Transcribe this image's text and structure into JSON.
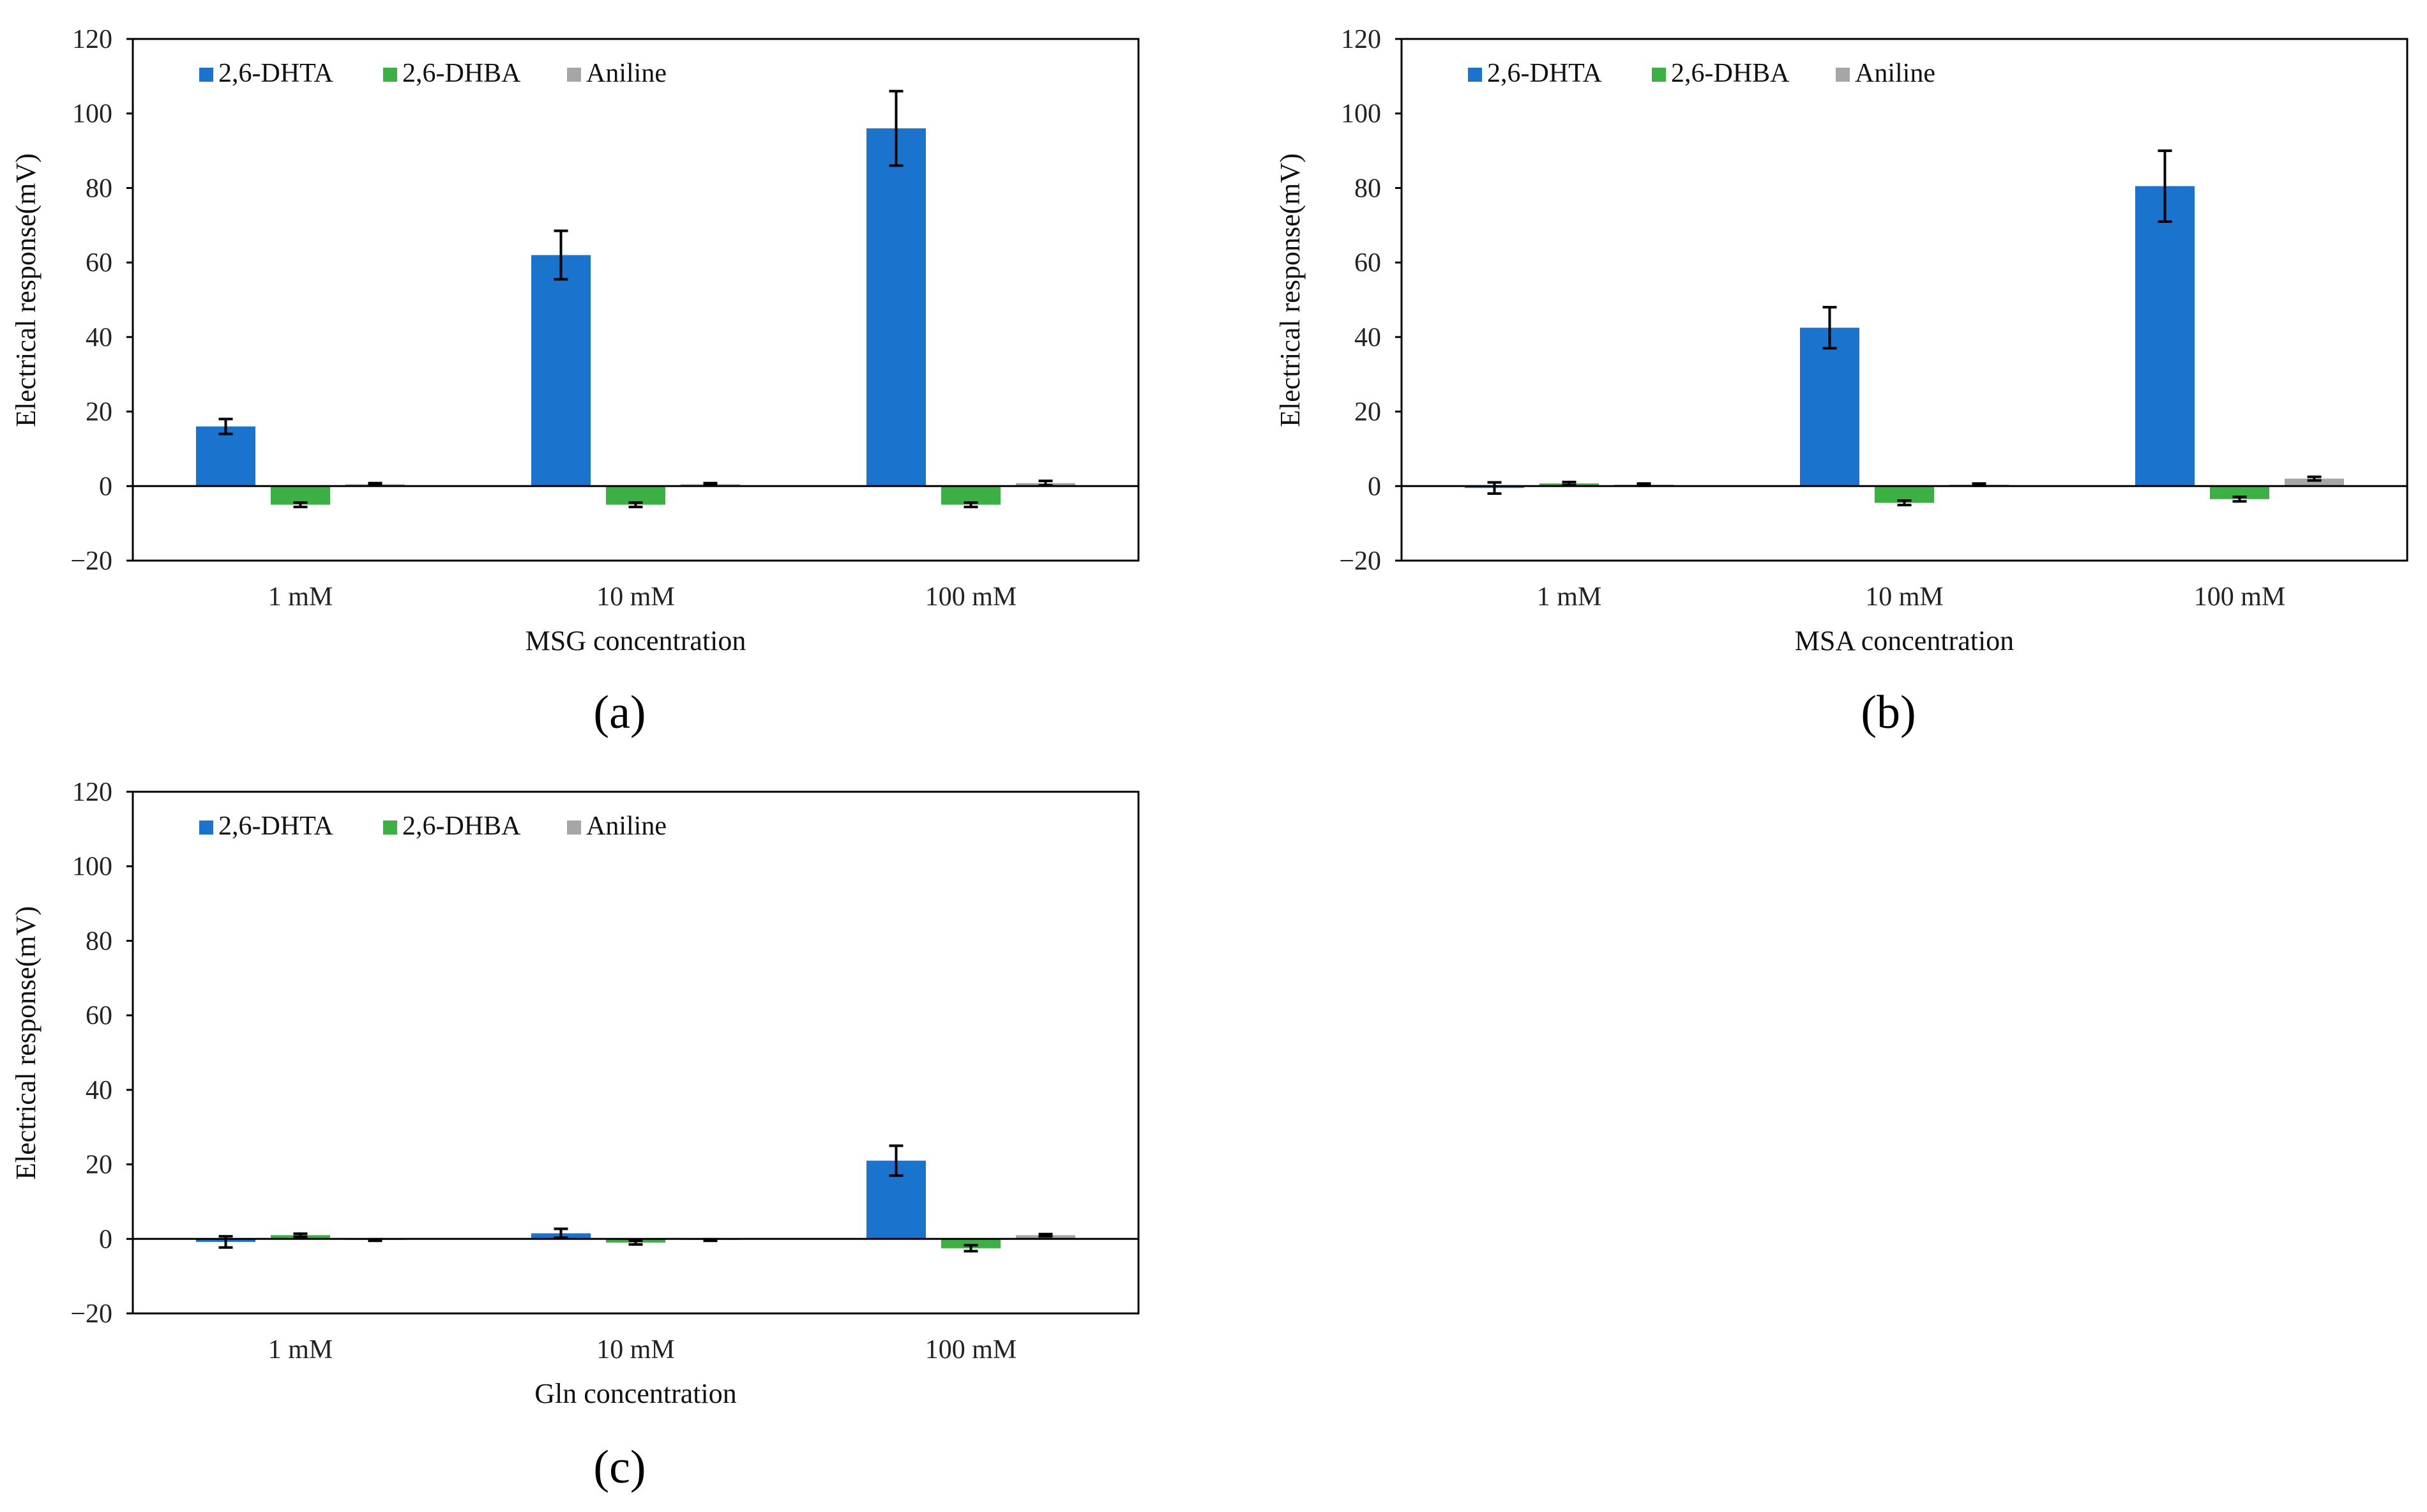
{
  "colors": {
    "series": [
      "#1a73cc",
      "#3cb043",
      "#a6a6a6"
    ],
    "axis": "#000000",
    "error": "#000000"
  },
  "chart_data": [
    {
      "type": "bar",
      "caption": "(a)",
      "categories": [
        "1 mM",
        "10 mM",
        "100 mM"
      ],
      "xlabel": "MSG concentration",
      "ylabel": "Electrical response(mV)",
      "ylim": [
        -20,
        120
      ],
      "yticks": [
        "120",
        "100",
        "80",
        "60",
        "40",
        "20",
        "0",
        "−20"
      ],
      "legend": "top-left",
      "series": [
        {
          "name": "2,6-DHTA",
          "values": [
            16,
            62,
            96
          ],
          "errors": [
            2,
            6.5,
            10
          ]
        },
        {
          "name": "2,6-DHBA",
          "values": [
            -5,
            -5,
            -5
          ],
          "errors": [
            0.6,
            0.6,
            0.6
          ]
        },
        {
          "name": "Aniline",
          "values": [
            0.5,
            0.5,
            0.8
          ],
          "errors": [
            0.3,
            0.3,
            0.6
          ]
        }
      ]
    },
    {
      "type": "bar",
      "caption": "(b)",
      "categories": [
        "1 mM",
        "10 mM",
        "100 mM"
      ],
      "xlabel": "MSA concentration",
      "ylabel": "Electrical response(mV)",
      "ylim": [
        -20,
        120
      ],
      "yticks": [
        "120",
        "100",
        "80",
        "60",
        "40",
        "20",
        "0",
        "−20"
      ],
      "legend": "top-left",
      "series": [
        {
          "name": "2,6-DHTA",
          "values": [
            -0.5,
            42.5,
            80.5
          ],
          "errors": [
            1.5,
            5.5,
            9.5
          ]
        },
        {
          "name": "2,6-DHBA",
          "values": [
            0.7,
            -4.5,
            -3.5
          ],
          "errors": [
            0.4,
            0.6,
            0.6
          ]
        },
        {
          "name": "Aniline",
          "values": [
            0.4,
            0.4,
            2
          ],
          "errors": [
            0.3,
            0.3,
            0.5
          ]
        }
      ]
    },
    {
      "type": "bar",
      "caption": "(c)",
      "categories": [
        "1 mM",
        "10 mM",
        "100 mM"
      ],
      "xlabel": "Gln concentration",
      "ylabel": "Electrical response(mV)",
      "ylim": [
        -20,
        120
      ],
      "yticks": [
        "120",
        "100",
        "80",
        "60",
        "40",
        "20",
        "0",
        "−20"
      ],
      "legend": "top-left",
      "series": [
        {
          "name": "2,6-DHTA",
          "values": [
            -0.8,
            1.5,
            21
          ],
          "errors": [
            1.5,
            1.2,
            4
          ]
        },
        {
          "name": "2,6-DHBA",
          "values": [
            1,
            -1,
            -2.5
          ],
          "errors": [
            0.4,
            0.5,
            0.8
          ]
        },
        {
          "name": "Aniline",
          "values": [
            -0.3,
            -0.3,
            1
          ],
          "errors": [
            0.2,
            0.2,
            0.3
          ]
        }
      ]
    }
  ]
}
